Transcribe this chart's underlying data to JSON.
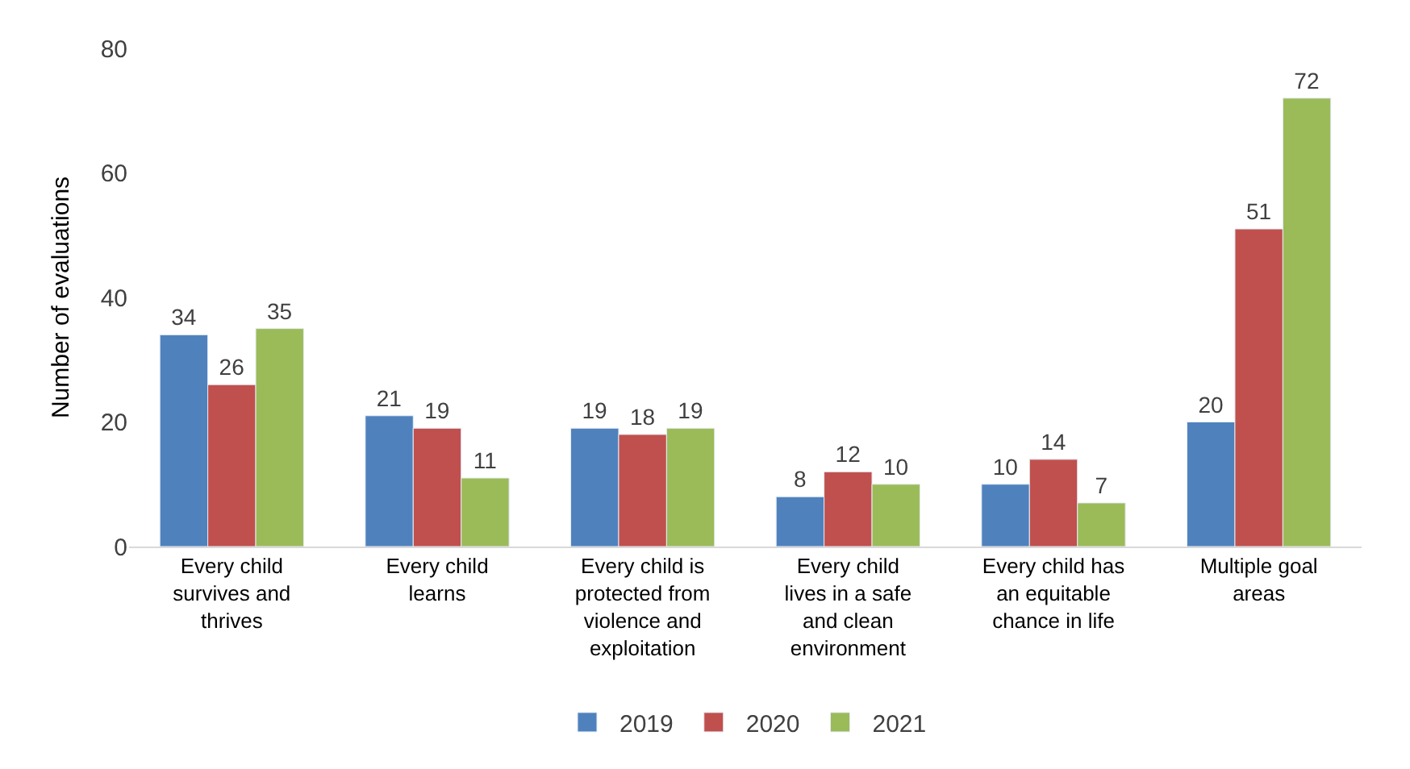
{
  "chart_data": {
    "type": "bar",
    "ylabel": "Number of evaluations",
    "categories": [
      "Every child survives and thrives",
      "Every child learns",
      "Every child is protected from violence and exploitation",
      "Every child lives in a safe and clean environment",
      "Every child has an equitable chance in life",
      "Multiple goal areas"
    ],
    "series": [
      {
        "name": "2019",
        "color": "#4f81bd",
        "values": [
          34,
          21,
          19,
          8,
          10,
          20
        ]
      },
      {
        "name": "2020",
        "color": "#c0504d",
        "values": [
          26,
          19,
          18,
          12,
          14,
          51
        ]
      },
      {
        "name": "2021",
        "color": "#9bbb59",
        "values": [
          35,
          11,
          19,
          10,
          7,
          72
        ]
      }
    ],
    "ylim": [
      0,
      80
    ],
    "yticks": [
      0,
      20,
      40,
      60,
      80
    ],
    "grid": false,
    "legend": "bottom",
    "data_labels": true
  }
}
